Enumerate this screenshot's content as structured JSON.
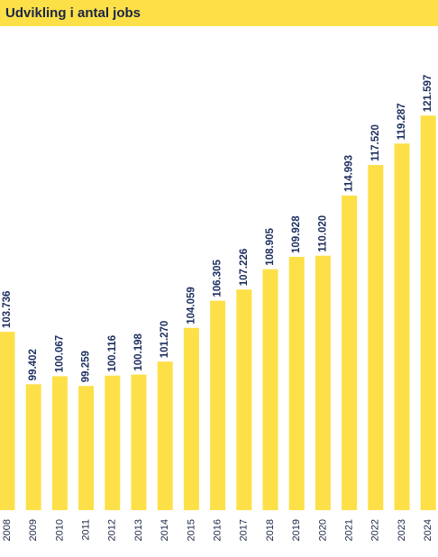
{
  "chart_data": {
    "type": "bar",
    "title": "Udvikling i antal jobs",
    "categories": [
      "2008",
      "2009",
      "2010",
      "2011",
      "2012",
      "2013",
      "2014",
      "2015",
      "2016",
      "2017",
      "2018",
      "2019",
      "2020",
      "2021",
      "2022",
      "2023",
      "2024"
    ],
    "values": [
      103736,
      99402,
      100067,
      99259,
      100116,
      100198,
      101270,
      104059,
      106305,
      107226,
      108905,
      109928,
      110020,
      114993,
      117520,
      119287,
      121597
    ],
    "value_labels": [
      "103.736",
      "99.402",
      "100.067",
      "99.259",
      "100.116",
      "100.198",
      "101.270",
      "104.059",
      "106.305",
      "107.226",
      "108.905",
      "109.928",
      "110.020",
      "114.993",
      "117.520",
      "119.287",
      "121.597"
    ],
    "color": "#fde047",
    "ylim": [
      89000,
      124000
    ],
    "grid": false
  }
}
